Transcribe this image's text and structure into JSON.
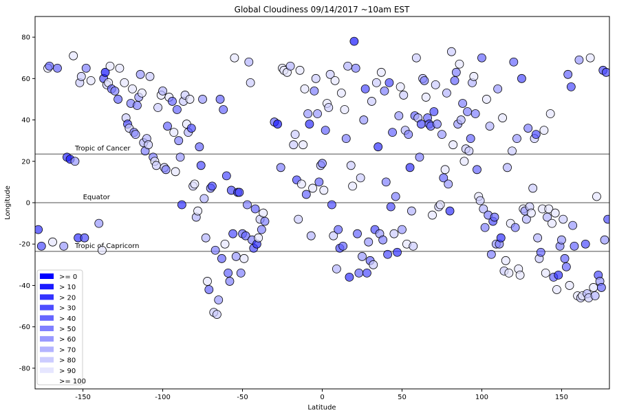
{
  "chart_data": {
    "type": "scatter",
    "title": "Global Cloudiness 09/14/2017 ~10am EST",
    "xlabel": "Latitude",
    "ylabel": "Longitude",
    "xlim": [
      -180,
      180
    ],
    "ylim": [
      -90,
      90
    ],
    "grid": false,
    "x_ticks": [
      "-150",
      "-100",
      "-50",
      "0",
      "50",
      "100",
      "150"
    ],
    "y_ticks": [
      "-80",
      "-60",
      "-40",
      "-20",
      "0",
      "20",
      "40",
      "60",
      "80"
    ],
    "reference_lines": [
      {
        "label": "Tropic of Cancer",
        "y": 23.5,
        "label_x": -155
      },
      {
        "label": "Equator",
        "y": 0,
        "label_x": -150
      },
      {
        "label": "Tropic of Capricorn",
        "y": -23.5,
        "label_x": -155
      }
    ],
    "legend": {
      "placement": "lower-left",
      "entries": [
        {
          "label": ">= 0",
          "color": "#0000ff"
        },
        {
          "label": "> 10",
          "color": "#1a1aff"
        },
        {
          "label": "> 20",
          "color": "#3333ff"
        },
        {
          "label": "> 30",
          "color": "#4d4dff"
        },
        {
          "label": "> 40",
          "color": "#6666ff"
        },
        {
          "label": "> 50",
          "color": "#8080ff"
        },
        {
          "label": "> 60",
          "color": "#9999ff"
        },
        {
          "label": "> 70",
          "color": "#b3b3ff"
        },
        {
          "label": "> 80",
          "color": "#ccccff"
        },
        {
          "label": "> 90",
          "color": "#e6e6ff"
        },
        {
          "label": ">= 100",
          "color": "#ffffff"
        }
      ]
    },
    "points": [
      [
        -178,
        -13,
        2
      ],
      [
        -176,
        -21,
        3
      ],
      [
        -172,
        65,
        9
      ],
      [
        -171,
        66,
        4
      ],
      [
        -169,
        -19,
        9
      ],
      [
        -166,
        65,
        4
      ],
      [
        -162,
        -21,
        6
      ],
      [
        -160,
        22,
        2
      ],
      [
        -158,
        21,
        1
      ],
      [
        -156,
        71,
        9
      ],
      [
        -155,
        20,
        6
      ],
      [
        -153,
        -17,
        2
      ],
      [
        -152,
        58,
        8
      ],
      [
        -151,
        61,
        8
      ],
      [
        -149,
        -17,
        3
      ],
      [
        -148,
        65,
        5
      ],
      [
        -145,
        59,
        9
      ],
      [
        -140,
        -10,
        6
      ],
      [
        -138,
        -23,
        9
      ],
      [
        -137,
        60,
        3
      ],
      [
        -136,
        63,
        1
      ],
      [
        -135,
        57,
        8
      ],
      [
        -134,
        58,
        9
      ],
      [
        -133,
        66,
        9
      ],
      [
        -132,
        55,
        4
      ],
      [
        -130,
        54,
        5
      ],
      [
        -128,
        50,
        4
      ],
      [
        -127,
        65,
        9
      ],
      [
        -124,
        58,
        9
      ],
      [
        -123,
        41,
        8
      ],
      [
        -122,
        38,
        3
      ],
      [
        -121,
        36,
        8
      ],
      [
        -120,
        48,
        5
      ],
      [
        -119,
        55,
        9
      ],
      [
        -118,
        34,
        5
      ],
      [
        -117,
        33,
        6
      ],
      [
        -116,
        47,
        5
      ],
      [
        -115,
        51,
        6
      ],
      [
        -114,
        62,
        6
      ],
      [
        -113,
        53,
        9
      ],
      [
        -112,
        29,
        7
      ],
      [
        -111,
        25,
        5
      ],
      [
        -110,
        31,
        7
      ],
      [
        -109,
        28,
        8
      ],
      [
        -108,
        61,
        8
      ],
      [
        -106,
        22,
        5
      ],
      [
        -105,
        20,
        9
      ],
      [
        -104,
        18,
        8
      ],
      [
        -103,
        46,
        8
      ],
      [
        -101,
        52,
        9
      ],
      [
        -100,
        54,
        7
      ],
      [
        -99,
        17,
        8
      ],
      [
        -98,
        16,
        5
      ],
      [
        -97,
        37,
        4
      ],
      [
        -96,
        51,
        9
      ],
      [
        -94,
        49,
        4
      ],
      [
        -93,
        34,
        9
      ],
      [
        -92,
        15,
        9
      ],
      [
        -91,
        45,
        4
      ],
      [
        -90,
        30,
        5
      ],
      [
        -89,
        22,
        6
      ],
      [
        -88,
        -1,
        2
      ],
      [
        -87,
        49,
        8
      ],
      [
        -86,
        52,
        8
      ],
      [
        -85,
        38,
        9
      ],
      [
        -84,
        34,
        7
      ],
      [
        -83,
        50,
        9
      ],
      [
        -82,
        36,
        3
      ],
      [
        -81,
        8,
        8
      ],
      [
        -80,
        9,
        9
      ],
      [
        -79,
        -7,
        7
      ],
      [
        -78,
        -4,
        9
      ],
      [
        -77,
        27,
        4
      ],
      [
        -76,
        18,
        3
      ],
      [
        -75,
        50,
        6
      ],
      [
        -74,
        2,
        7
      ],
      [
        -73,
        -17,
        7
      ],
      [
        -72,
        -38,
        9
      ],
      [
        -71,
        -42,
        4
      ],
      [
        -70,
        7,
        5
      ],
      [
        -69,
        8,
        3
      ],
      [
        -68,
        -53,
        8
      ],
      [
        -67,
        -23,
        5
      ],
      [
        -66,
        -54,
        8
      ],
      [
        -65,
        -47,
        6
      ],
      [
        -64,
        50,
        4
      ],
      [
        -63,
        -27,
        4
      ],
      [
        -62,
        45,
        4
      ],
      [
        -61,
        -20,
        9
      ],
      [
        -60,
        13,
        3
      ],
      [
        -59,
        -34,
        4
      ],
      [
        -58,
        -38,
        5
      ],
      [
        -57,
        6,
        3
      ],
      [
        -56,
        -15,
        3
      ],
      [
        -55,
        70,
        9
      ],
      [
        -54,
        -26,
        6
      ],
      [
        -53,
        5,
        2
      ],
      [
        -52,
        5,
        3
      ],
      [
        -51,
        -34,
        5
      ],
      [
        -50,
        -15,
        4
      ],
      [
        -49,
        -27,
        9
      ],
      [
        -48,
        -16,
        4
      ],
      [
        -47,
        -1,
        5
      ],
      [
        -46,
        68,
        7
      ],
      [
        -45,
        58,
        8
      ],
      [
        -44,
        -18,
        5
      ],
      [
        -43,
        -22,
        3
      ],
      [
        -42,
        -3,
        4
      ],
      [
        -41,
        -20,
        2
      ],
      [
        -40,
        -17,
        9
      ],
      [
        -39,
        -8,
        8
      ],
      [
        -38,
        -13,
        5
      ],
      [
        -37,
        -5,
        9
      ],
      [
        -36,
        -9,
        5
      ],
      [
        -30,
        39,
        4
      ],
      [
        -28,
        38,
        1
      ],
      [
        -26,
        17,
        5
      ],
      [
        -25,
        65,
        9
      ],
      [
        -24,
        64,
        9
      ],
      [
        -22,
        63,
        9
      ],
      [
        -20,
        66,
        7
      ],
      [
        -18,
        28,
        8
      ],
      [
        -17,
        33,
        8
      ],
      [
        -16,
        11,
        3
      ],
      [
        -15,
        -8,
        8
      ],
      [
        -14,
        64,
        9
      ],
      [
        -13,
        9,
        9
      ],
      [
        -12,
        28,
        9
      ],
      [
        -11,
        55,
        9
      ],
      [
        -10,
        4,
        4
      ],
      [
        -9,
        43,
        6
      ],
      [
        -8,
        38,
        2
      ],
      [
        -7,
        -16,
        7
      ],
      [
        -6,
        7,
        9
      ],
      [
        -5,
        54,
        5
      ],
      [
        -4,
        60,
        8
      ],
      [
        -3,
        43,
        6
      ],
      [
        -2,
        10,
        4
      ],
      [
        -1,
        18,
        7
      ],
      [
        0,
        19,
        5
      ],
      [
        1,
        6,
        9
      ],
      [
        2,
        35,
        4
      ],
      [
        3,
        48,
        9
      ],
      [
        4,
        46,
        8
      ],
      [
        5,
        62,
        8
      ],
      [
        6,
        -1,
        3
      ],
      [
        7,
        -16,
        8
      ],
      [
        8,
        59,
        9
      ],
      [
        9,
        -32,
        7
      ],
      [
        10,
        -13,
        4
      ],
      [
        11,
        -22,
        3
      ],
      [
        12,
        53,
        9
      ],
      [
        13,
        -21,
        4
      ],
      [
        14,
        45,
        9
      ],
      [
        15,
        31,
        5
      ],
      [
        16,
        66,
        7
      ],
      [
        17,
        -36,
        2
      ],
      [
        18,
        18,
        8
      ],
      [
        19,
        8,
        9
      ],
      [
        20,
        78,
        1
      ],
      [
        21,
        65,
        5
      ],
      [
        22,
        -15,
        4
      ],
      [
        23,
        -34,
        4
      ],
      [
        24,
        12,
        8
      ],
      [
        25,
        -26,
        6
      ],
      [
        26,
        40,
        6
      ],
      [
        27,
        55,
        3
      ],
      [
        28,
        -34,
        3
      ],
      [
        29,
        -19,
        6
      ],
      [
        30,
        -28,
        4
      ],
      [
        31,
        49,
        8
      ],
      [
        32,
        -30,
        8
      ],
      [
        33,
        -13,
        3
      ],
      [
        34,
        58,
        8
      ],
      [
        35,
        27,
        2
      ],
      [
        36,
        -15,
        6
      ],
      [
        37,
        63,
        9
      ],
      [
        38,
        -18,
        5
      ],
      [
        39,
        54,
        5
      ],
      [
        40,
        10,
        5
      ],
      [
        41,
        -25,
        3
      ],
      [
        42,
        58,
        3
      ],
      [
        43,
        -2,
        3
      ],
      [
        44,
        34,
        4
      ],
      [
        45,
        -15,
        8
      ],
      [
        46,
        3,
        5
      ],
      [
        47,
        -24,
        2
      ],
      [
        48,
        42,
        6
      ],
      [
        49,
        56,
        9
      ],
      [
        50,
        -13,
        6
      ],
      [
        51,
        52,
        8
      ],
      [
        52,
        35,
        7
      ],
      [
        53,
        -20,
        9
      ],
      [
        54,
        33,
        5
      ],
      [
        55,
        17,
        2
      ],
      [
        56,
        -4,
        7
      ],
      [
        57,
        -21,
        8
      ],
      [
        58,
        42,
        4
      ],
      [
        59,
        70,
        8
      ],
      [
        60,
        41,
        7
      ],
      [
        61,
        22,
        5
      ],
      [
        62,
        38,
        3
      ],
      [
        63,
        60,
        7
      ],
      [
        64,
        59,
        5
      ],
      [
        65,
        51,
        9
      ],
      [
        66,
        41,
        4
      ],
      [
        67,
        38,
        3
      ],
      [
        68,
        37,
        4
      ],
      [
        69,
        -6,
        9
      ],
      [
        70,
        44,
        3
      ],
      [
        71,
        57,
        8
      ],
      [
        72,
        38,
        5
      ],
      [
        73,
        -2,
        8
      ],
      [
        74,
        -1,
        9
      ],
      [
        75,
        33,
        6
      ],
      [
        76,
        12,
        4
      ],
      [
        77,
        16,
        9
      ],
      [
        78,
        53,
        7
      ],
      [
        79,
        9,
        6
      ],
      [
        80,
        -4,
        2
      ],
      [
        81,
        73,
        8
      ],
      [
        82,
        28,
        9
      ],
      [
        83,
        59,
        4
      ],
      [
        84,
        63,
        5
      ],
      [
        85,
        38,
        6
      ],
      [
        86,
        67,
        9
      ],
      [
        87,
        40,
        7
      ],
      [
        88,
        48,
        5
      ],
      [
        89,
        20,
        9
      ],
      [
        90,
        26,
        8
      ],
      [
        91,
        44,
        5
      ],
      [
        92,
        25,
        8
      ],
      [
        93,
        31,
        4
      ],
      [
        94,
        58,
        7
      ],
      [
        95,
        61,
        9
      ],
      [
        96,
        43,
        5
      ],
      [
        97,
        16,
        4
      ],
      [
        98,
        3,
        9
      ],
      [
        99,
        1,
        8
      ],
      [
        100,
        70,
        4
      ],
      [
        101,
        -3,
        7
      ],
      [
        102,
        -12,
        5
      ],
      [
        103,
        50,
        9
      ],
      [
        104,
        -6,
        5
      ],
      [
        105,
        37,
        7
      ],
      [
        106,
        -25,
        5
      ],
      [
        107,
        -9,
        3
      ],
      [
        108,
        -7,
        4
      ],
      [
        109,
        -20,
        6
      ],
      [
        110,
        55,
        6
      ],
      [
        111,
        -20,
        5
      ],
      [
        112,
        -17,
        2
      ],
      [
        113,
        41,
        9
      ],
      [
        114,
        -33,
        8
      ],
      [
        115,
        -28,
        9
      ],
      [
        116,
        17,
        7
      ],
      [
        117,
        -34,
        9
      ],
      [
        118,
        -10,
        9
      ],
      [
        119,
        25,
        8
      ],
      [
        120,
        68,
        4
      ],
      [
        121,
        -12,
        5
      ],
      [
        122,
        31,
        6
      ],
      [
        123,
        -32,
        9
      ],
      [
        124,
        -35,
        9
      ],
      [
        125,
        60,
        3
      ],
      [
        126,
        -3,
        9
      ],
      [
        127,
        -4,
        6
      ],
      [
        128,
        -8,
        7
      ],
      [
        129,
        36,
        5
      ],
      [
        130,
        -2,
        8
      ],
      [
        131,
        -5,
        9
      ],
      [
        132,
        7,
        8
      ],
      [
        133,
        31,
        8
      ],
      [
        134,
        33,
        3
      ],
      [
        135,
        -17,
        7
      ],
      [
        136,
        -27,
        8
      ],
      [
        137,
        -24,
        4
      ],
      [
        138,
        -3,
        9
      ],
      [
        139,
        35,
        9
      ],
      [
        140,
        -34,
        9
      ],
      [
        141,
        -7,
        7
      ],
      [
        142,
        -3,
        9
      ],
      [
        143,
        43,
        9
      ],
      [
        144,
        -10,
        9
      ],
      [
        145,
        -36,
        4
      ],
      [
        146,
        -5,
        9
      ],
      [
        147,
        -42,
        9
      ],
      [
        148,
        -35,
        2
      ],
      [
        149,
        -21,
        5
      ],
      [
        150,
        -18,
        6
      ],
      [
        151,
        -8,
        8
      ],
      [
        152,
        -27,
        4
      ],
      [
        153,
        -31,
        4
      ],
      [
        154,
        62,
        4
      ],
      [
        155,
        -40,
        9
      ],
      [
        156,
        56,
        3
      ],
      [
        157,
        -11,
        6
      ],
      [
        158,
        -21,
        4
      ],
      [
        160,
        -45,
        9
      ],
      [
        161,
        69,
        6
      ],
      [
        162,
        -46,
        8
      ],
      [
        163,
        -45,
        9
      ],
      [
        165,
        -20,
        3
      ],
      [
        166,
        -44,
        7
      ],
      [
        167,
        -46,
        8
      ],
      [
        168,
        70,
        9
      ],
      [
        170,
        -41,
        9
      ],
      [
        171,
        -45,
        7
      ],
      [
        172,
        3,
        9
      ],
      [
        173,
        -35,
        3
      ],
      [
        174,
        -38,
        6
      ],
      [
        175,
        -41,
        4
      ],
      [
        176,
        64,
        3
      ],
      [
        177,
        -18,
        6
      ],
      [
        178,
        63,
        3
      ],
      [
        179,
        -8,
        3
      ]
    ]
  }
}
